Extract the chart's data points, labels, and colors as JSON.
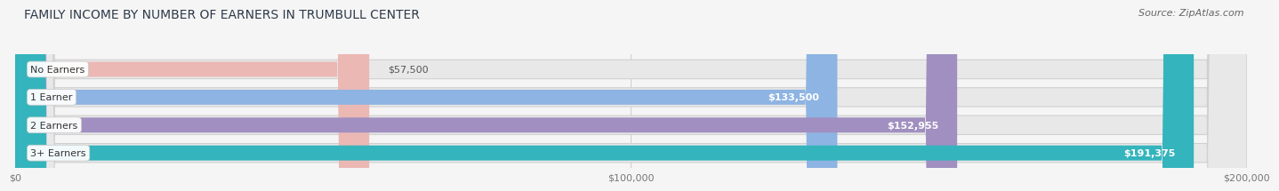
{
  "title": "FAMILY INCOME BY NUMBER OF EARNERS IN TRUMBULL CENTER",
  "source": "Source: ZipAtlas.com",
  "categories": [
    "No Earners",
    "1 Earner",
    "2 Earners",
    "3+ Earners"
  ],
  "values": [
    57500,
    133500,
    152955,
    191375
  ],
  "bar_colors": [
    "#ebb8b4",
    "#8db4e2",
    "#a08fc0",
    "#34b4bc"
  ],
  "value_labels": [
    "$57,500",
    "$133,500",
    "$152,955",
    "$191,375"
  ],
  "value_label_colors": [
    "#555555",
    "#ffffff",
    "#ffffff",
    "#ffffff"
  ],
  "xlim": [
    0,
    200000
  ],
  "xticks": [
    0,
    100000,
    200000
  ],
  "xtick_labels": [
    "$0",
    "$100,000",
    "$200,000"
  ],
  "background_color": "#f5f5f5",
  "bar_bg_color": "#e8e8e8",
  "title_fontsize": 10,
  "source_fontsize": 8,
  "label_fontsize": 8,
  "value_fontsize": 8
}
